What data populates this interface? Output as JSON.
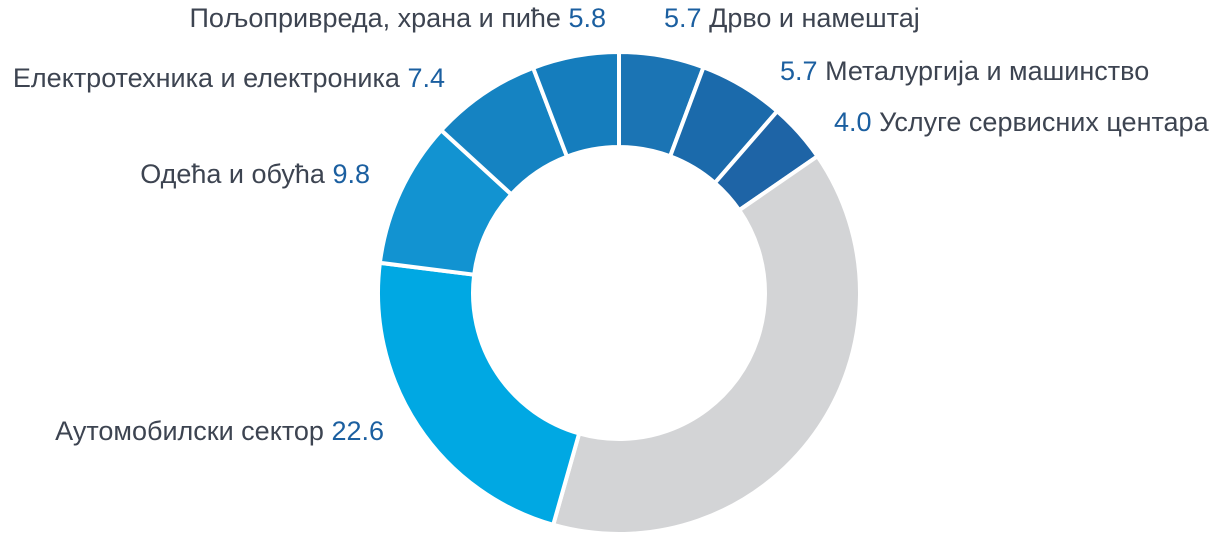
{
  "chart_data": {
    "type": "pie",
    "variant": "donut",
    "slices": [
      {
        "label": "Дрво и намештај",
        "value": 5.7,
        "color": "#1b74b4"
      },
      {
        "label": "Металургија и машинство",
        "value": 5.7,
        "color": "#1b6aab"
      },
      {
        "label": "Услуге сервисних центара",
        "value": 4.0,
        "color": "#1e64a6"
      },
      {
        "label": "",
        "value": 39.0,
        "color": "#d3d4d6"
      },
      {
        "label": "Аутомобилски сектор",
        "value": 22.6,
        "color": "#00a8e3"
      },
      {
        "label": "Одећа и обућа",
        "value": 9.8,
        "color": "#1293d1"
      },
      {
        "label": "Електротехника и електроника",
        "value": 7.4,
        "color": "#1583c2"
      },
      {
        "label": "Пољопривреда, храна и пиће",
        "value": 5.8,
        "color": "#157dbd"
      }
    ],
    "value_labels": [
      "5.7",
      "5.7",
      "4.0",
      "",
      "22.6",
      "9.8",
      "7.4",
      "5.8"
    ]
  }
}
